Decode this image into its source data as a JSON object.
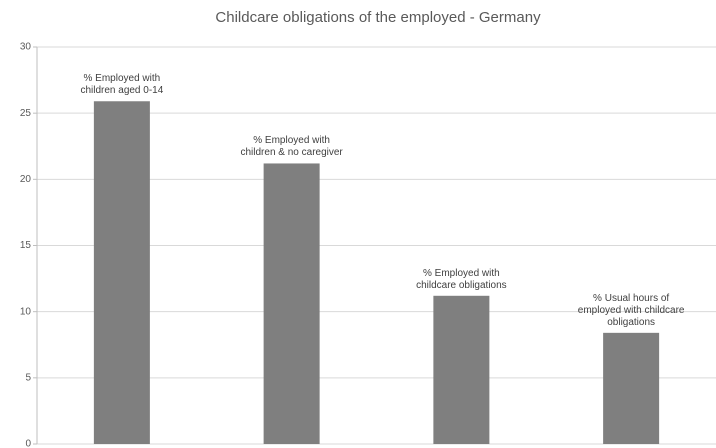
{
  "chart_data": {
    "type": "bar",
    "title": "Childcare obligations of the employed - Germany",
    "categories": [
      "% Employed with children aged 0-14",
      "% Employed with children & no caregiver",
      "% Employed with childcare obligations",
      "% Usual hours of employed with childcare obligations"
    ],
    "values": [
      25.9,
      21.2,
      11.2,
      8.4
    ],
    "color": "#7f7f7f",
    "ylim": [
      0,
      30
    ],
    "yticks": [
      0,
      5,
      10,
      15,
      20,
      25,
      30
    ],
    "grid": true
  }
}
